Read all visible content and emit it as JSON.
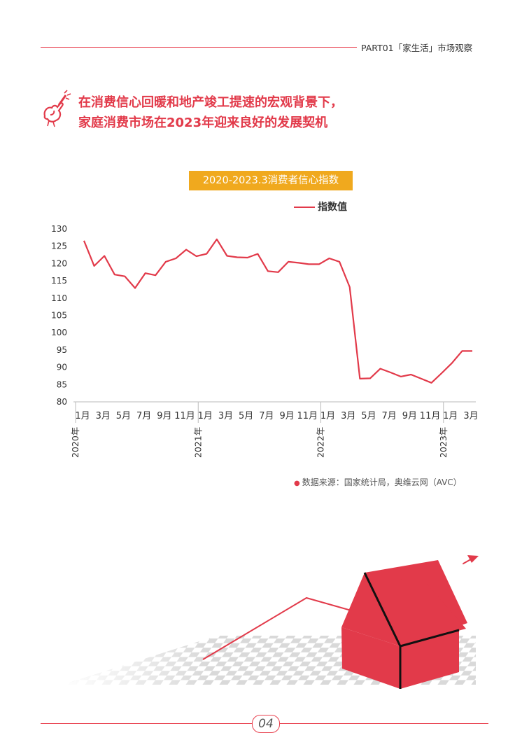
{
  "header": {
    "text": "PART01「家生活」市场观察"
  },
  "section": {
    "title_line1": "在消费信心回暖和地产竣工提速的宏观背景下，",
    "title_line2": "家庭消费市场在2023年迎来良好的发展契机"
  },
  "chart": {
    "title": "2020-2023.3消费者信心指数"
  },
  "chart_data": {
    "type": "line",
    "title": "2020-2023.3消费者信心指数",
    "legend": "top-right",
    "series": [
      {
        "name": "指数值",
        "color": "#e23a4a",
        "values": [
          126.6,
          119.3,
          122.2,
          116.8,
          116.3,
          112.9,
          117.2,
          116.6,
          120.5,
          121.5,
          124.0,
          122.1,
          122.8,
          127.0,
          122.2,
          121.8,
          121.7,
          122.8,
          117.8,
          117.5,
          120.5,
          120.2,
          119.8,
          119.8,
          121.5,
          120.5,
          113.2,
          86.7,
          86.8,
          89.6,
          88.5,
          87.3,
          87.9,
          86.7,
          85.5,
          88.3,
          91.2,
          94.7,
          94.7
        ]
      }
    ],
    "yticks": [
      "130",
      "125",
      "120",
      "115",
      "110",
      "105",
      "100",
      "95",
      "90",
      "85",
      "80"
    ],
    "ylim": [
      80,
      130
    ],
    "month_labels": [
      "1月",
      "3月",
      "5月",
      "7月",
      "9月",
      "11月",
      "1月",
      "3月",
      "5月",
      "7月",
      "9月",
      "11月",
      "1月",
      "3月",
      "5月",
      "7月",
      "9月",
      "11月",
      "1月",
      "3月"
    ],
    "year_labels": [
      "2020年",
      "2021年",
      "2022年",
      "2023年"
    ],
    "grid": false
  },
  "source": {
    "text": "数据来源：国家统计局，奥维云网（AVC）"
  },
  "footer": {
    "page_number": "04"
  }
}
